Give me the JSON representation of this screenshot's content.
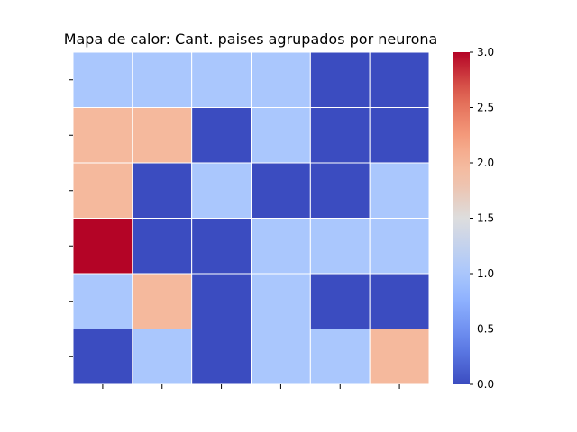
{
  "chart_data": {
    "type": "heatmap",
    "title": "Mapa de calor: Cant. paises agrupados por neurona",
    "rows": 6,
    "cols": 6,
    "values": [
      [
        1,
        1,
        1,
        1,
        0,
        0
      ],
      [
        2,
        2,
        0,
        1,
        0,
        0
      ],
      [
        2,
        0,
        1,
        0,
        0,
        1
      ],
      [
        3,
        0,
        0,
        1,
        1,
        1
      ],
      [
        1,
        2,
        0,
        1,
        0,
        0
      ],
      [
        0,
        1,
        0,
        1,
        1,
        2
      ]
    ],
    "colorbar": {
      "min": 0.0,
      "max": 3.0,
      "ticks": [
        "0.0",
        "0.5",
        "1.0",
        "1.5",
        "2.0",
        "2.5",
        "3.0"
      ],
      "colormap": "coolwarm"
    },
    "x_tick_labels": [
      "",
      "",
      "",
      "",
      "",
      ""
    ],
    "y_tick_labels": [
      "",
      "",
      "",
      "",
      "",
      ""
    ],
    "grid_line_color": "#ffffff"
  }
}
